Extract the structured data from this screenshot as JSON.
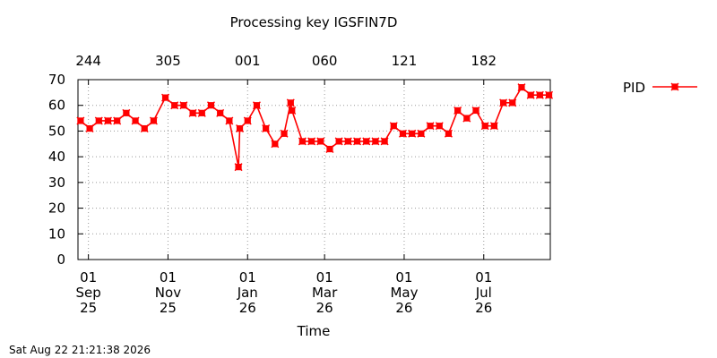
{
  "chart_data": {
    "type": "line",
    "title": "Processing key IGSFIN7D",
    "xlabel": "Time",
    "ylabel": "",
    "ylim": [
      0,
      70
    ],
    "yticks": [
      0,
      10,
      20,
      30,
      40,
      50,
      60,
      70
    ],
    "xlim": [
      "2025-08-24",
      "2026-08-21"
    ],
    "grid": true,
    "legend_position": "top-right",
    "bottom_ticks": [
      {
        "date": "2025-09-01",
        "day": "01",
        "month": "Sep",
        "year": "25"
      },
      {
        "date": "2025-11-01",
        "day": "01",
        "month": "Nov",
        "year": "25"
      },
      {
        "date": "2026-01-01",
        "day": "01",
        "month": "Jan",
        "year": "26"
      },
      {
        "date": "2026-03-01",
        "day": "01",
        "month": "Mar",
        "year": "26"
      },
      {
        "date": "2026-05-01",
        "day": "01",
        "month": "May",
        "year": "26"
      },
      {
        "date": "2026-07-01",
        "day": "01",
        "month": "Jul",
        "year": "26"
      }
    ],
    "top_ticks": [
      {
        "date": "2025-09-01",
        "label": "244"
      },
      {
        "date": "2025-11-01",
        "label": "305"
      },
      {
        "date": "2026-01-01",
        "label": "001"
      },
      {
        "date": "2026-03-01",
        "label": "060"
      },
      {
        "date": "2026-05-01",
        "label": "121"
      },
      {
        "date": "2026-07-01",
        "label": "182"
      }
    ],
    "series": [
      {
        "name": "PID",
        "color": "#ff0000",
        "marker": "x-square",
        "x": [
          "2025-08-26",
          "2025-09-02",
          "2025-09-09",
          "2025-09-16",
          "2025-09-23",
          "2025-09-30",
          "2025-10-07",
          "2025-10-14",
          "2025-10-21",
          "2025-10-30",
          "2025-11-06",
          "2025-11-13",
          "2025-11-20",
          "2025-11-27",
          "2025-12-04",
          "2025-12-11",
          "2025-12-18",
          "2025-12-25",
          "2025-12-26",
          "2026-01-01",
          "2026-01-08",
          "2026-01-15",
          "2026-01-22",
          "2026-01-29",
          "2026-02-03",
          "2026-02-04",
          "2026-02-12",
          "2026-02-19",
          "2026-02-26",
          "2026-03-05",
          "2026-03-12",
          "2026-03-19",
          "2026-03-26",
          "2026-04-02",
          "2026-04-09",
          "2026-04-16",
          "2026-04-23",
          "2026-04-30",
          "2026-05-07",
          "2026-05-14",
          "2026-05-21",
          "2026-05-28",
          "2026-06-04",
          "2026-06-11",
          "2026-06-18",
          "2026-06-25",
          "2026-07-02",
          "2026-07-09",
          "2026-07-16",
          "2026-07-23",
          "2026-07-30",
          "2026-08-06",
          "2026-08-13",
          "2026-08-20"
        ],
        "y": [
          54,
          51,
          54,
          54,
          54,
          57,
          54,
          51,
          54,
          63,
          60,
          60,
          57,
          57,
          60,
          57,
          54,
          36,
          51,
          54,
          60,
          51,
          45,
          49,
          61,
          58,
          46,
          46,
          46,
          43,
          46,
          46,
          46,
          46,
          46,
          46,
          52,
          49,
          49,
          49,
          52,
          52,
          49,
          58,
          55,
          58,
          52,
          52,
          61,
          61,
          67,
          64,
          64,
          64
        ]
      }
    ]
  },
  "footer": {
    "timestamp": "Sat Aug 22 21:21:38 2026"
  }
}
